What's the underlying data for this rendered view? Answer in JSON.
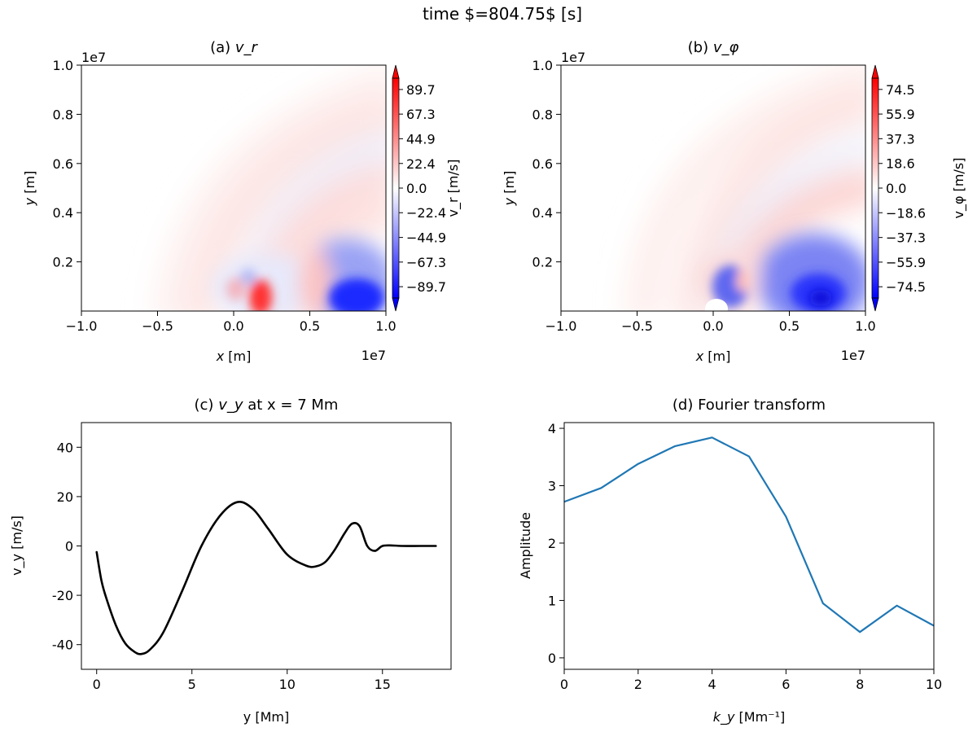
{
  "suptitle": "time $=804.75$ [s]",
  "chart_data": [
    {
      "id": "a",
      "type": "heatmap",
      "title_prefix": "(a)",
      "title_var": "v_r",
      "xlabel_var": "x",
      "xlabel_unit": " [m]",
      "ylabel_var": "y",
      "ylabel_unit": " [m]",
      "x_offset_text": "1e7",
      "y_offset_text": "1e7",
      "xlim": [
        -1.0,
        1.0
      ],
      "ylim": [
        0.0,
        1.0
      ],
      "xticks": [
        "−1.0",
        "−0.5",
        "0.0",
        "0.5",
        "1.0"
      ],
      "yticks": [
        "0.2",
        "0.4",
        "0.6",
        "0.8",
        "1.0"
      ],
      "colormap": "bwr",
      "colorbar_label": "v_r [m/s]",
      "colorbar_ticks": [
        "89.7",
        "67.3",
        "44.9",
        "22.4",
        "0.0",
        "−22.4",
        "−44.9",
        "−67.3",
        "−89.7"
      ],
      "colorbar_range": [
        -100.0,
        100.0
      ]
    },
    {
      "id": "b",
      "type": "heatmap",
      "title_prefix": "(b)",
      "title_var": "v_φ",
      "xlabel_var": "x",
      "xlabel_unit": " [m]",
      "ylabel_var": "y",
      "ylabel_unit": " [m]",
      "x_offset_text": "1e7",
      "y_offset_text": "1e7",
      "xlim": [
        -1.0,
        1.0
      ],
      "ylim": [
        0.0,
        1.0
      ],
      "xticks": [
        "−1.0",
        "−0.5",
        "0.0",
        "0.5",
        "1.0"
      ],
      "yticks": [
        "0.2",
        "0.4",
        "0.6",
        "0.8",
        "1.0"
      ],
      "colormap": "bwr",
      "colorbar_label": "v_φ [m/s]",
      "colorbar_ticks": [
        "74.5",
        "55.9",
        "37.3",
        "18.6",
        "0.0",
        "−18.6",
        "−37.3",
        "−55.9",
        "−74.5"
      ],
      "colorbar_range": [
        -83.0,
        83.0
      ]
    },
    {
      "id": "c",
      "type": "line",
      "title_prefix": "(c)",
      "title_var": "v_y",
      "title_suffix": " at x = 7 Mm",
      "xlabel": "y [Mm]",
      "ylabel": "v_y [m/s]",
      "xlim": [
        -0.8,
        18.6
      ],
      "ylim": [
        -50,
        50
      ],
      "xticks": [
        0,
        5,
        10,
        15
      ],
      "yticks": [
        -40,
        -20,
        0,
        20,
        40
      ],
      "series": [
        {
          "color": "#000000",
          "x": [
            0.0,
            0.25,
            0.5,
            1.0,
            1.5,
            2.0,
            2.35,
            2.8,
            3.5,
            4.5,
            5.5,
            6.5,
            7.4,
            8.2,
            9.0,
            10.0,
            11.0,
            11.5,
            12.0,
            12.5,
            13.0,
            13.4,
            13.8,
            14.2,
            14.6,
            15.0,
            15.5,
            16.0,
            17.0,
            17.8
          ],
          "y": [
            -2.5,
            -14,
            -21,
            -32,
            -39.5,
            -43,
            -43.8,
            -42,
            -35,
            -18,
            0,
            12.5,
            17.8,
            15,
            7,
            -3.5,
            -8,
            -8.3,
            -6.5,
            -1.5,
            5,
            9,
            8,
            0,
            -2,
            0,
            0.2,
            0,
            0,
            0
          ]
        }
      ]
    },
    {
      "id": "d",
      "type": "line",
      "title": "(d)  Fourier transform",
      "xlabel_var": "k_y",
      "xlabel_unit": " [Mm⁻¹]",
      "ylabel": "Amplitude",
      "xlim": [
        0,
        10
      ],
      "ylim": [
        -0.2,
        4.1
      ],
      "xticks": [
        0,
        2,
        4,
        6,
        8,
        10
      ],
      "yticks": [
        0,
        1,
        2,
        3,
        4
      ],
      "series": [
        {
          "color": "#1f77b4",
          "x": [
            0,
            1,
            2,
            3,
            4,
            5,
            6,
            7,
            8,
            9,
            10
          ],
          "y": [
            2.72,
            2.96,
            3.38,
            3.69,
            3.84,
            3.51,
            2.46,
            0.95,
            0.45,
            0.91,
            0.56
          ]
        }
      ]
    }
  ]
}
